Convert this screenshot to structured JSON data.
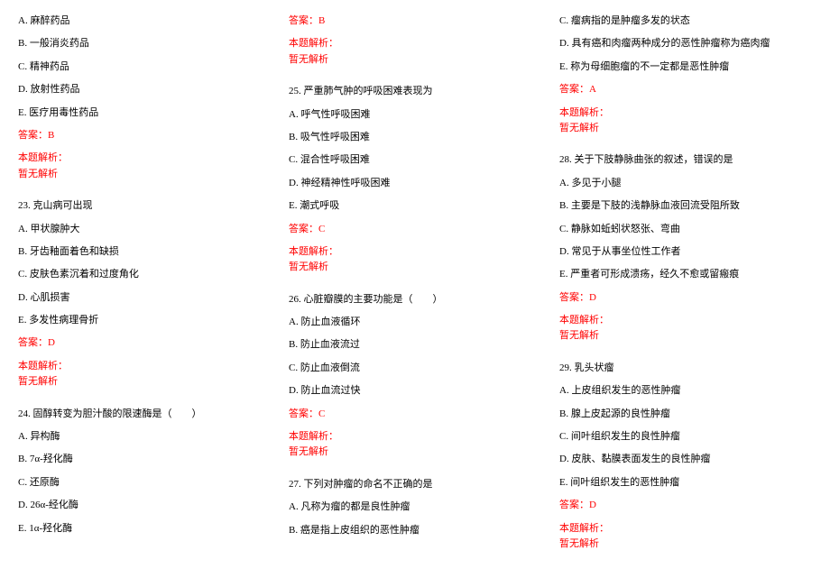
{
  "col1": {
    "q22_opts": [
      "A. 麻醉药品",
      "B. 一般消炎药品",
      "C. 精神药品",
      "D. 放射性药品",
      "E. 医疗用毒性药品"
    ],
    "q22_ans": "答案：B",
    "analysis_label": "本题解析：",
    "analysis_none": "暂无解析",
    "q23_stem": "23. 克山病可出现",
    "q23_opts": [
      "A. 甲状腺肿大",
      "B. 牙齿釉面着色和缺损",
      "C. 皮肤色素沉着和过度角化",
      "D. 心肌损害",
      "E. 多发性病理骨折"
    ],
    "q23_ans": "答案：D",
    "q24_stem": "24. 固醇转变为胆汁酸的限速酶是（　　）",
    "q24_opts": [
      "A. 异构酶",
      "B. 7α-羟化酶",
      "C. 还原酶",
      "D. 26α-经化酶",
      "E. 1α-羟化酶"
    ]
  },
  "col2": {
    "q24_ans": "答案：B",
    "analysis_label": "本题解析：",
    "analysis_none": "暂无解析",
    "q25_stem": "25. 严重肺气肿的呼吸困难表现为",
    "q25_opts": [
      "A. 呼气性呼吸困难",
      "B. 吸气性呼吸困难",
      "C. 混合性呼吸困难",
      "D. 神经精神性呼吸困难",
      "E. 潮式呼吸"
    ],
    "q25_ans": "答案：C",
    "q26_stem": "26. 心脏瓣膜的主要功能是（　　）",
    "q26_opts": [
      "A. 防止血液循环",
      "B. 防止血液流过",
      "C. 防止血液倒流",
      "D. 防止血流过快"
    ],
    "q26_ans": "答案：C",
    "q27_stem": "27. 下列对肿瘤的命名不正确的是",
    "q27_opts": [
      "A. 凡称为瘤的都是良性肿瘤",
      "B. 癌是指上皮组织的恶性肿瘤"
    ]
  },
  "col3": {
    "q27_opts_cont": [
      "C. 瘤病指的是肿瘤多发的状态",
      "D. 具有癌和肉瘤两种成分的恶性肿瘤称为癌肉瘤",
      "E. 称为母细胞瘤的不一定都是恶性肿瘤"
    ],
    "q27_ans": "答案：A",
    "analysis_label": "本题解析：",
    "analysis_none": "暂无解析",
    "q28_stem": "28. 关于下肢静脉曲张的叙述，错误的是",
    "q28_opts": [
      "A. 多见于小腿",
      "B. 主要是下肢的浅静脉血液回流受阻所致",
      "C. 静脉如蚯蚓状怒张、弯曲",
      "D. 常见于从事坐位性工作者",
      "E. 严重者可形成溃疡，经久不愈或留瘢痕"
    ],
    "q28_ans": "答案：D",
    "q29_stem": "29. 乳头状瘤",
    "q29_opts": [
      "A. 上皮组织发生的恶性肿瘤",
      "B. 腺上皮起源的良性肿瘤",
      "C. 间叶组织发生的良性肿瘤",
      "D. 皮肤、黏膜表面发生的良性肿瘤",
      "E. 间叶组织发生的恶性肿瘤"
    ],
    "q29_ans": "答案：D"
  }
}
